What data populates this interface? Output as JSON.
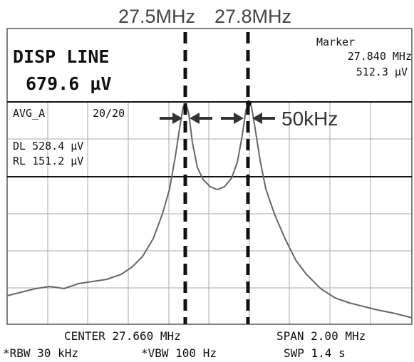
{
  "annotations": {
    "marker_a": "27.5MHz",
    "marker_b": "27.8MHz",
    "width": "50kHz"
  },
  "screen": {
    "mode": "DISP LINE",
    "disp_value": "679.6 µV",
    "marker_label": "Marker",
    "marker_freq": "27.840 MHz",
    "marker_level": "512.3 µV",
    "avg_label": "AVG_A",
    "avg_count": "20/20",
    "dl": "DL 528.4 µV",
    "rl": "RL 151.2 µV"
  },
  "footer": {
    "center": "CENTER 27.660 MHz",
    "span": "SPAN 2.00 MHz",
    "rbw": "*RBW 30 kHz",
    "vbw": "*VBW 100 Hz",
    "swp": "SWP 1.4 s"
  }
}
